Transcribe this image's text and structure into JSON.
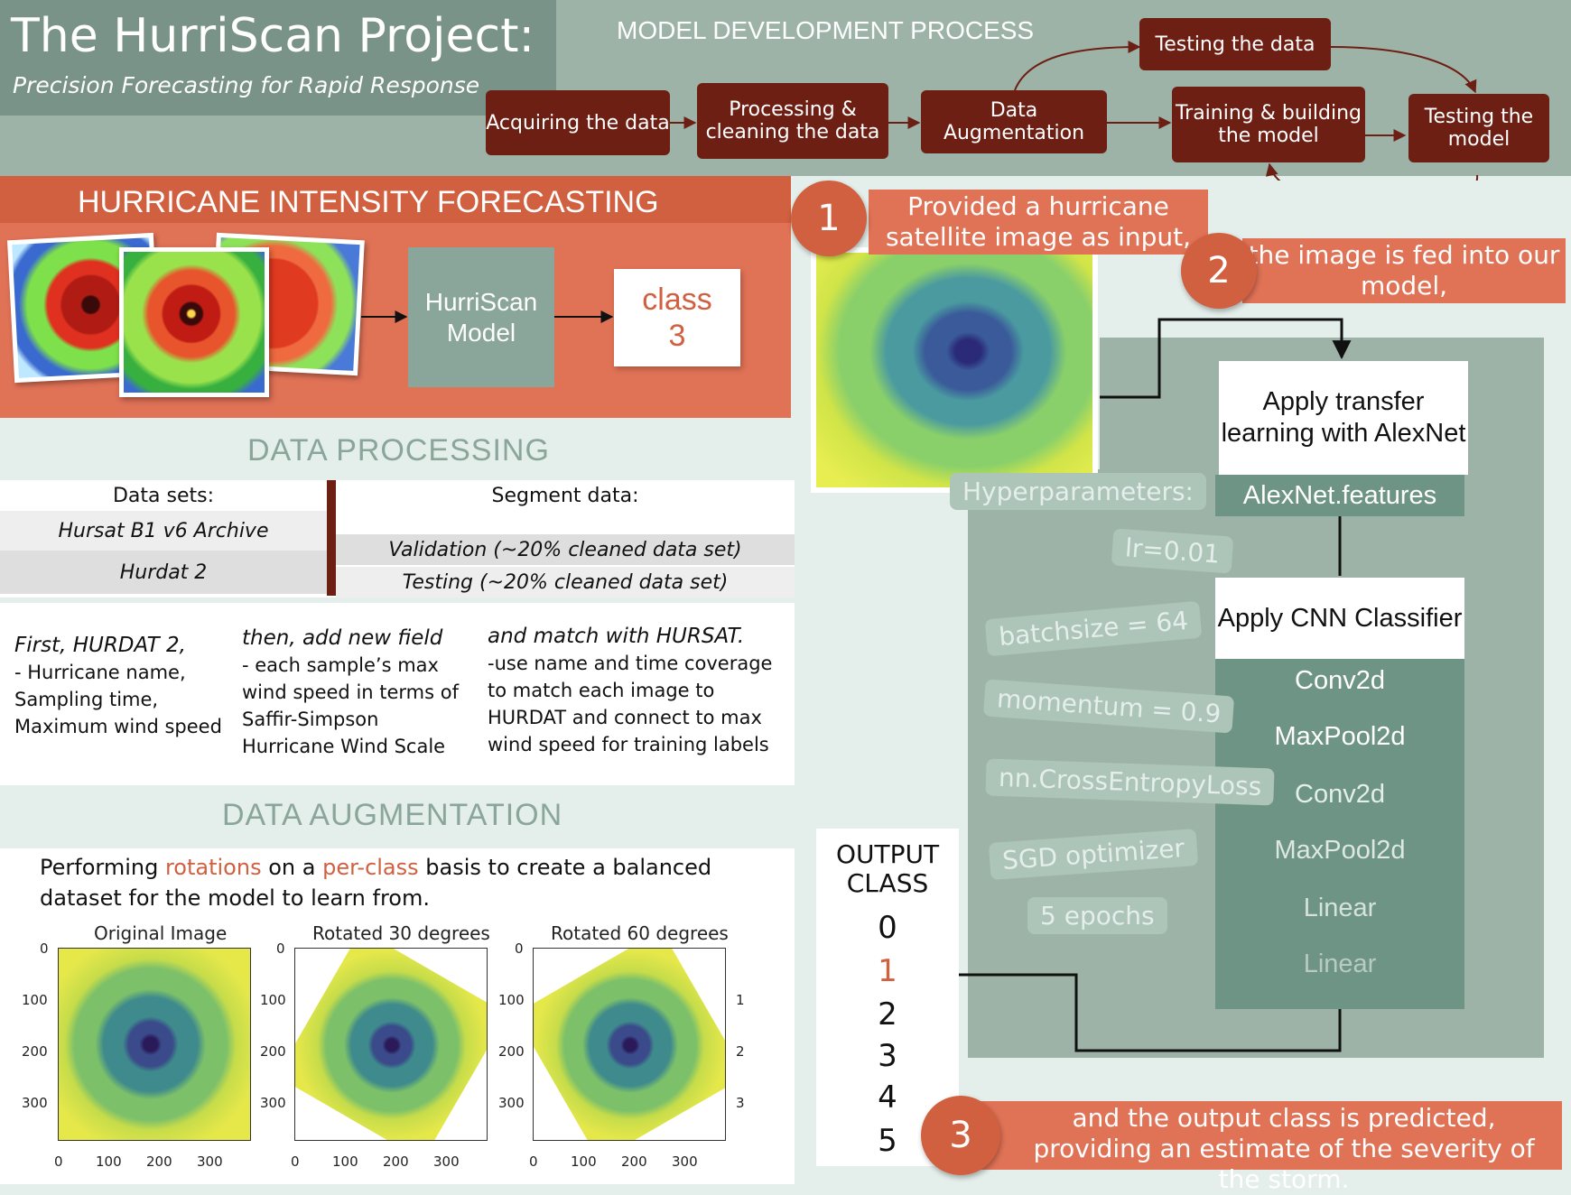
{
  "header": {
    "title": "The HurriScan Project:",
    "subtitle": "Precision Forecasting for Rapid Response",
    "process_title": "MODEL DEVELOPMENT PROCESS",
    "steps": [
      "Acquiring the data",
      "Processing & cleaning the data",
      "Data Augmentation",
      "Training & building the model",
      "Testing the model",
      "Testing the data"
    ]
  },
  "forecasting": {
    "title": "HURRICANE INTENSITY FORECASTING",
    "model_label": "HurriScan Model",
    "class_word": "class",
    "class_value": "3"
  },
  "data_processing": {
    "title": "DATA  PROCESSING",
    "datasets_header": "Data sets:",
    "datasets": [
      "Hursat B1 v6 Archive",
      "Hurdat 2"
    ],
    "segment_header": "Segment data:",
    "segments": [
      "Validation (~20% cleaned data set)",
      "Testing (~20% cleaned data set)"
    ],
    "steps": [
      {
        "heading": "First, HURDAT 2,",
        "lines": [
          "- Hurricane name,",
          "Sampling time,",
          "Maximum wind speed"
        ]
      },
      {
        "heading": "then, add new field",
        "lines": [
          "- each sample’s max",
          "wind speed in terms of",
          "Saffir-Simpson",
          "Hurricane Wind Scale"
        ]
      },
      {
        "heading": "and match with HURSAT.",
        "lines": [
          "-use name and time coverage",
          "to match each image to",
          "HURDAT and connect to max",
          "wind speed for training labels"
        ]
      }
    ]
  },
  "data_augmentation": {
    "title": "DATA  AUGMENTATION",
    "desc_before": "Performing ",
    "desc_hl1": "rotations",
    "desc_mid": " on a ",
    "desc_hl2": "per-class",
    "desc_after": " basis to create a balanced",
    "desc_line2": "dataset for the model to learn from.",
    "plots": [
      {
        "title": "Original Image",
        "rotation_deg": 0
      },
      {
        "title": "Rotated 30 degrees",
        "rotation_deg": 30
      },
      {
        "title": "Rotated 60 degrees",
        "rotation_deg": 60
      }
    ],
    "y_ticks": [
      "0",
      "100",
      "200",
      "300"
    ],
    "x_ticks": [
      "0",
      "100",
      "200",
      "300"
    ],
    "clipped_tick": "1",
    "clipped_tick_2": "2",
    "clipped_tick_3": "3"
  },
  "pipeline": {
    "step1_num": "1",
    "step1_text": "Provided a hurricane satellite image as input,",
    "step2_num": "2",
    "step2_text": "the image is fed into our model,",
    "step3_num": "3",
    "step3_text": "and the output class is predicted, providing an estimate of the severity of the storm.",
    "transfer": "Apply transfer learning with AlexNet",
    "features": "AlexNet.features",
    "cnn": "Apply CNN Classifier",
    "layers": [
      "Conv2d",
      "MaxPool2d",
      "Conv2d",
      "MaxPool2d",
      "Linear",
      "Linear"
    ],
    "hyper_title": "Hyperparameters:",
    "hyperparameters": [
      "lr=0.01",
      "batchsize = 64",
      "momentum = 0.9",
      "nn.CrossEntropyLoss",
      "SGD optimizer",
      "5 epochs"
    ],
    "output_title": "OUTPUT CLASS",
    "output_classes": [
      "0",
      "1",
      "2",
      "3",
      "4",
      "5"
    ],
    "highlighted_class": "1"
  },
  "colors": {
    "accent": "#d0603f",
    "step_fill": "#6e1f14",
    "sage": "#8aa69a"
  }
}
